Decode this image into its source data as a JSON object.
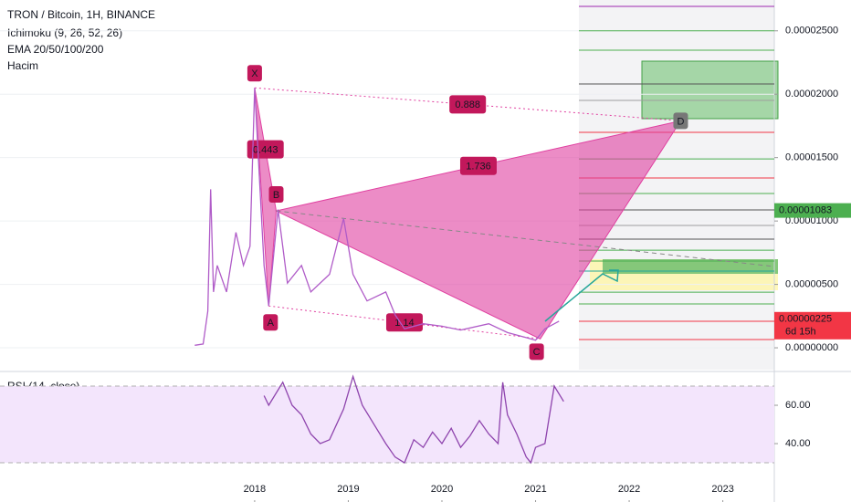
{
  "chart_data": [
    {
      "type": "line",
      "title": "TRON / Bitcoin, 1H, BINANCE",
      "indicators": [
        "Ichimoku (9, 26, 52, 26)",
        "EMA 20/50/100/200",
        "Hacim"
      ],
      "x": [
        2017.36,
        2017.45,
        2017.5,
        2017.53,
        2017.56,
        2017.6,
        2017.7,
        2017.8,
        2017.88,
        2017.95,
        2018.0,
        2018.1,
        2018.15,
        2018.25,
        2018.35,
        2018.5,
        2018.6,
        2018.8,
        2018.95,
        2019.05,
        2019.2,
        2019.4,
        2019.5,
        2019.6,
        2019.8,
        2020.0,
        2020.2,
        2020.5,
        2020.7,
        2020.9,
        2021.0,
        2021.1,
        2021.25
      ],
      "values": [
        2e-07,
        3e-07,
        2.9e-06,
        1.25e-05,
        4.4e-06,
        6.5e-06,
        4.4e-06,
        9.1e-06,
        6.5e-06,
        8e-06,
        2.05e-05,
        6.5e-06,
        3.3e-06,
        1.09e-05,
        5.1e-06,
        6.5e-06,
        4.4e-06,
        5.8e-06,
        1.02e-05,
        5.8e-06,
        3.7e-06,
        4.4e-06,
        2.6e-06,
        1.5e-06,
        1.9e-06,
        1.7e-06,
        1.4e-06,
        1.9e-06,
        1.2e-06,
        8e-07,
        6e-07,
        1.5e-06,
        2.1e-06
      ],
      "color": "#b05cc8",
      "xlim": [
        2015.28,
        2023.55
      ],
      "xticks": [
        2018,
        2019,
        2020,
        2021,
        2022,
        2023
      ],
      "ylim": [
        -1.22e-06,
        2.743e-05
      ],
      "yticks": [
        {
          "value": 0,
          "label": "0.00000000"
        },
        {
          "value": 5e-06,
          "label": "0.00000500"
        },
        {
          "value": 1e-05,
          "label": "0.00001000"
        },
        {
          "value": 1.5e-05,
          "label": "0.00001500"
        },
        {
          "value": 2e-05,
          "label": "0.00002000"
        },
        {
          "value": 2.5e-05,
          "label": "0.00002500"
        }
      ],
      "grid": true,
      "pattern": {
        "points": [
          {
            "label": "X",
            "x": 2018.0,
            "y": 2.05e-05
          },
          {
            "label": "A",
            "x": 2018.15,
            "y": 3.3e-06
          },
          {
            "label": "B",
            "x": 2018.23,
            "y": 1.08e-05
          },
          {
            "label": "C",
            "x": 2021.05,
            "y": 7e-07
          },
          {
            "label": "D",
            "x": 2022.55,
            "y": 1.79e-05
          }
        ],
        "ratios": [
          "0.443",
          "1.736",
          "0.888",
          "1.14"
        ],
        "color": "#e040a0"
      },
      "levels": [
        {
          "value": 2.693e-05,
          "color": "#9c27b0"
        },
        {
          "value": 2.5e-05,
          "color": "#4caf50"
        },
        {
          "value": 2.347e-05,
          "color": "#4caf50"
        },
        {
          "value": 2.081e-05,
          "color": "#555555"
        },
        {
          "value": 1.951e-05,
          "color": "#9e9e9e"
        },
        {
          "value": 1.699e-05,
          "color": "#f23645"
        },
        {
          "value": 1.49e-05,
          "color": "#4caf50"
        },
        {
          "value": 1.339e-05,
          "color": "#f23645"
        },
        {
          "value": 1.217e-05,
          "color": "#4caf50"
        },
        {
          "value": 1.087e-05,
          "color": "#555555"
        },
        {
          "value": 9.65e-06,
          "color": "#9e9e9e"
        },
        {
          "value": 8.57e-06,
          "color": "#555555"
        },
        {
          "value": 7.7e-06,
          "color": "#4caf50"
        },
        {
          "value": 6.84e-06,
          "color": "#4caf50"
        },
        {
          "value": 6.05e-06,
          "color": "#26a69a"
        },
        {
          "value": 4.39e-06,
          "color": "#4caf50"
        },
        {
          "value": 3.46e-06,
          "color": "#4caf50"
        },
        {
          "value": 2.09e-06,
          "color": "#f23645"
        },
        {
          "value": 6.5e-07,
          "color": "#f23645"
        }
      ],
      "price_tags": [
        {
          "value": 1.083e-05,
          "label": "0.00001083",
          "color": "#4caf50"
        },
        {
          "value": 2.25e-06,
          "label": "0.00000225",
          "countdown": "6d 15h",
          "color": "#f23645"
        }
      ]
    },
    {
      "type": "line",
      "title": "RSI (14, close)",
      "x": [
        2018.1,
        2018.15,
        2018.3,
        2018.4,
        2018.5,
        2018.6,
        2018.7,
        2018.8,
        2018.95,
        2019.05,
        2019.15,
        2019.3,
        2019.4,
        2019.5,
        2019.6,
        2019.7,
        2019.8,
        2019.9,
        2020.0,
        2020.1,
        2020.2,
        2020.3,
        2020.4,
        2020.5,
        2020.6,
        2020.65,
        2020.7,
        2020.8,
        2020.9,
        2020.95,
        2021.0,
        2021.1,
        2021.2,
        2021.3
      ],
      "values": [
        65,
        60,
        72,
        60,
        55,
        45,
        40,
        42,
        58,
        75,
        60,
        48,
        40,
        33,
        30,
        42,
        38,
        46,
        40,
        48,
        38,
        44,
        52,
        45,
        40,
        72,
        55,
        45,
        33,
        30,
        38,
        40,
        70,
        62
      ],
      "color": "#8e44ad",
      "xlim": [
        2015.28,
        2023.55
      ],
      "ylim": [
        10.5,
        76.2
      ],
      "yticks": [
        {
          "value": 40,
          "label": "40.00"
        },
        {
          "value": 60,
          "label": "60.00"
        }
      ],
      "bands": [
        30,
        70
      ]
    }
  ]
}
